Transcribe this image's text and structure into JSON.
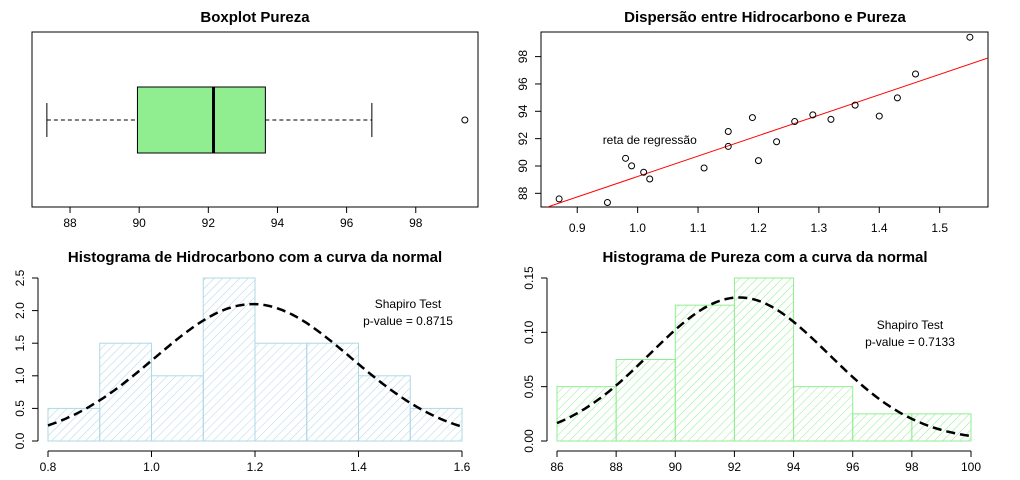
{
  "chart_data": [
    {
      "type": "boxplot",
      "title": "Boxplot Pureza",
      "orientation": "horizontal",
      "fill_color": "#90ee90",
      "stats": {
        "whisker_low": 87.33,
        "q1": 89.95,
        "median": 92.15,
        "q3": 93.65,
        "whisker_high": 96.73
      },
      "outliers": [
        99.42
      ],
      "xlim": [
        86.9,
        99.8
      ],
      "xticks": [
        88,
        90,
        92,
        94,
        96,
        98
      ]
    },
    {
      "type": "scatter",
      "title": "Dispersão entre Hidrocarbono e Pureza",
      "x": [
        0.99,
        1.02,
        1.15,
        1.29,
        1.46,
        1.36,
        0.87,
        1.23,
        1.55,
        1.4,
        1.19,
        1.15,
        0.98,
        1.01,
        1.11,
        1.2,
        1.26,
        1.32,
        1.43,
        0.95
      ],
      "y": [
        90.01,
        89.05,
        91.43,
        93.74,
        96.73,
        94.45,
        87.59,
        91.77,
        99.42,
        93.65,
        93.54,
        92.52,
        90.56,
        89.54,
        89.85,
        90.39,
        93.25,
        93.41,
        94.98,
        87.33
      ],
      "regression_line": {
        "intercept": 74.283,
        "slope": 14.947,
        "color": "#ff0000"
      },
      "annotation": "reta de regressão",
      "annotation_pos": {
        "x": 1.02,
        "y": 91.9
      },
      "xlim": [
        0.84,
        1.58
      ],
      "ylim": [
        87.0,
        99.8
      ],
      "xticks": [
        "0.9",
        "1.0",
        "1.1",
        "1.2",
        "1.3",
        "1.4",
        "1.5"
      ],
      "yticks": [
        "88",
        "90",
        "92",
        "94",
        "96",
        "98"
      ]
    },
    {
      "type": "histogram",
      "title": "Histograma de Hidrocarbono com a curva da normal",
      "breaks": [
        0.8,
        0.9,
        1.0,
        1.1,
        1.2,
        1.3,
        1.4,
        1.5,
        1.6
      ],
      "density": [
        0.5,
        1.5,
        1.0,
        2.5,
        1.5,
        1.5,
        1.0,
        0.5
      ],
      "hatch_color": "#add8e6",
      "normal_curve": {
        "mean": 1.196,
        "sd": 0.19
      },
      "xlim": [
        0.8,
        1.6
      ],
      "ylim": [
        0,
        2.5
      ],
      "xticks": [
        "0.8",
        "1.0",
        "1.2",
        "1.4",
        "1.6"
      ],
      "yticks": [
        "0.0",
        "0.5",
        "1.0",
        "1.5",
        "2.0",
        "2.5"
      ],
      "annotation": [
        "Shapiro Test",
        "p-value = 0.8715"
      ]
    },
    {
      "type": "histogram",
      "title": "Histograma de Pureza com a curva da normal",
      "breaks": [
        86,
        88,
        90,
        92,
        94,
        96,
        98,
        100
      ],
      "density": [
        0.05,
        0.075,
        0.125,
        0.15,
        0.05,
        0.025,
        0.025
      ],
      "hatch_color": "#90ee90",
      "normal_curve": {
        "mean": 92.16,
        "sd": 3.02
      },
      "xlim": [
        86,
        100
      ],
      "ylim": [
        0,
        0.15
      ],
      "xticks": [
        "86",
        "88",
        "90",
        "92",
        "94",
        "96",
        "98",
        "100"
      ],
      "yticks": [
        "0.00",
        "0.05",
        "0.10",
        "0.15"
      ],
      "annotation": [
        "Shapiro Test",
        "p-value = 0.7133"
      ]
    }
  ]
}
